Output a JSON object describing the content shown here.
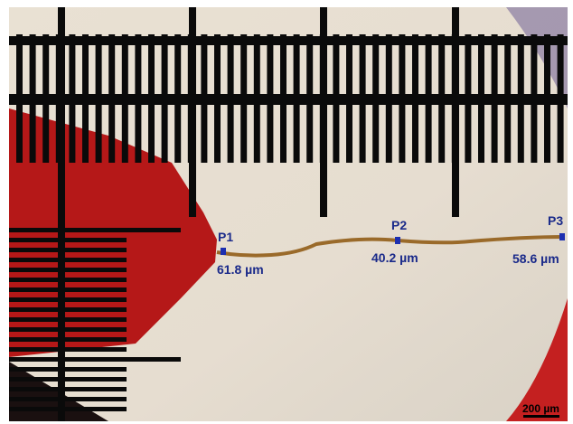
{
  "annotations": {
    "points": [
      {
        "label": "P1",
        "measurement": "61.8 µm"
      },
      {
        "label": "P2",
        "measurement": "40.2 µm"
      },
      {
        "label": "P3",
        "measurement": "58.6 µm"
      }
    ],
    "scale_bar": "200 µm"
  }
}
